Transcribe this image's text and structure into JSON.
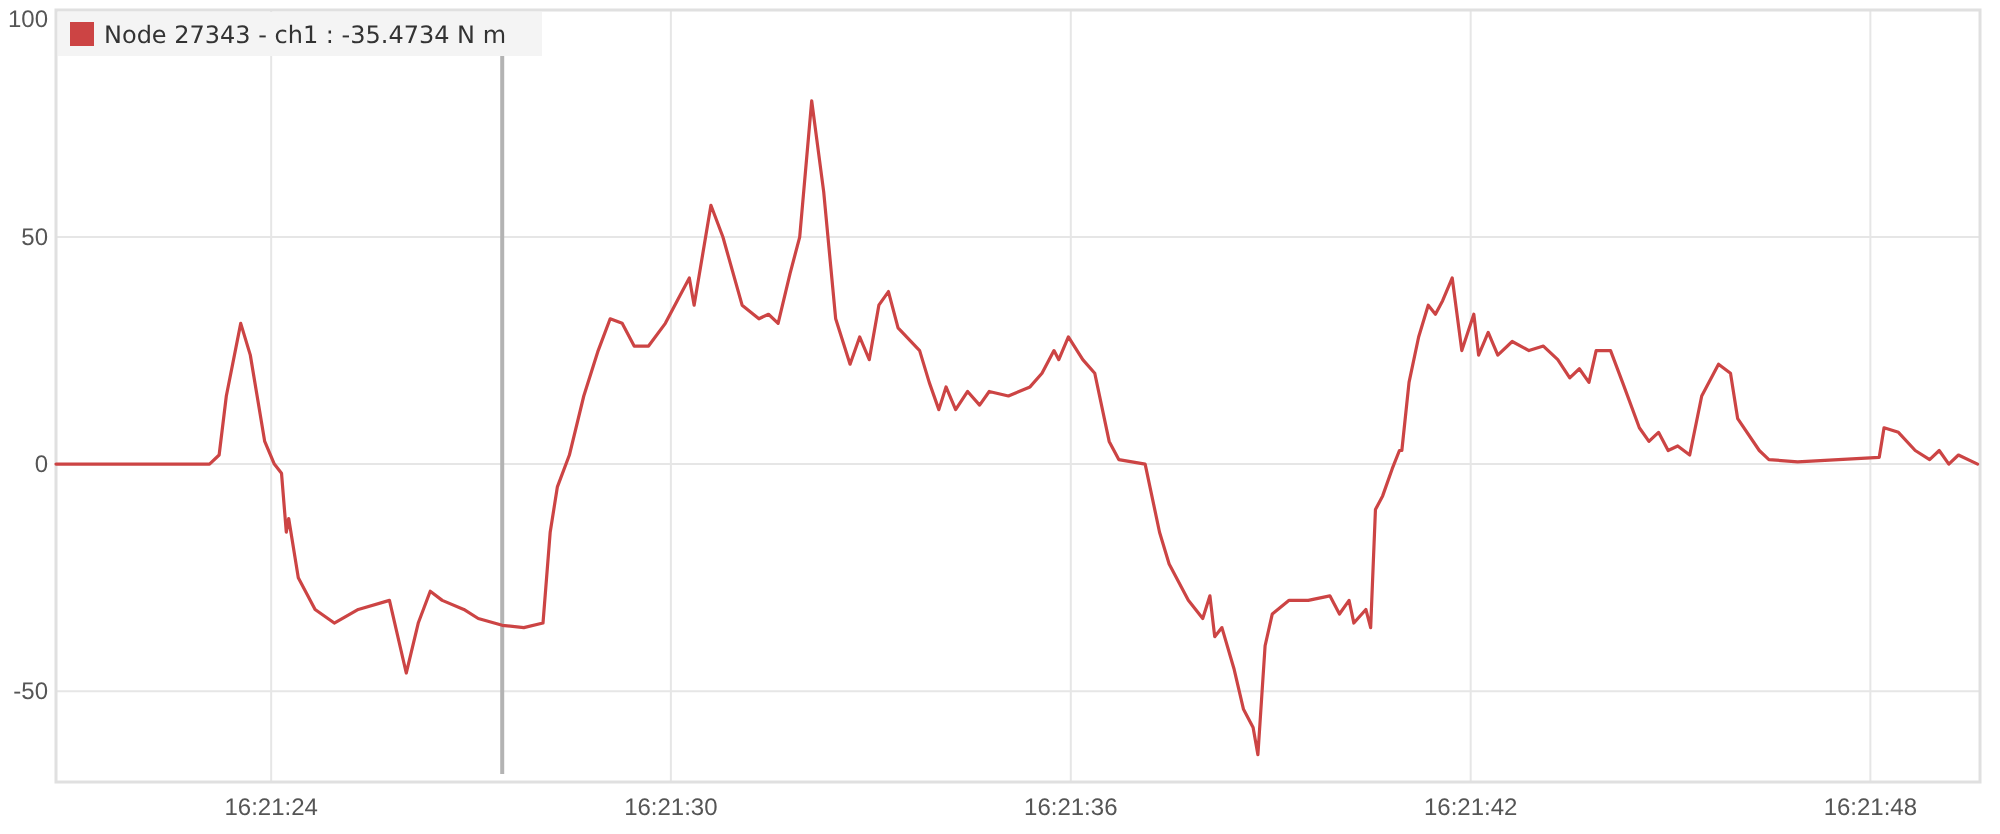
{
  "chart_data": {
    "type": "line",
    "x": [
      16.35577,
      16.35641,
      16.35645,
      16.35648,
      16.35654,
      16.35658,
      16.35664,
      16.35668,
      16.35671,
      16.35673,
      16.35674,
      16.35678,
      16.35685,
      16.35693,
      16.35703,
      16.35716,
      16.35723,
      16.35728,
      16.35733,
      16.35738,
      16.35747,
      16.35753,
      16.35763,
      16.35772,
      16.3578,
      16.35783,
      16.35786,
      16.35791,
      16.35797,
      16.35803,
      16.35808,
      16.35813,
      16.35818,
      16.35824,
      16.35831,
      16.35837,
      16.35841,
      16.35843,
      16.3585,
      16.35855,
      16.35863,
      16.3587,
      16.35874,
      16.35878,
      16.35883,
      16.35887,
      16.35892,
      16.35897,
      16.35902,
      16.35908,
      16.35912,
      16.35916,
      16.3592,
      16.35924,
      16.35928,
      16.35937,
      16.35941,
      16.35945,
      16.35948,
      16.35952,
      16.35957,
      16.35962,
      16.35966,
      16.35974,
      16.35983,
      16.35988,
      16.35993,
      16.35995,
      16.35999,
      16.36005,
      16.3601,
      16.36016,
      16.3602,
      16.36031,
      16.36033,
      16.36037,
      16.36041,
      16.36049,
      16.36055,
      16.36058,
      16.3606,
      16.36063,
      16.36068,
      16.36072,
      16.36076,
      16.36078,
      16.36081,
      16.36084,
      16.36091,
      16.36099,
      16.36108,
      16.36112,
      16.36116,
      16.36118,
      16.36123,
      16.36125,
      16.36127,
      16.3613,
      16.36134,
      16.36137,
      16.36138,
      16.36141,
      16.36145,
      16.36149,
      16.36152,
      16.36155,
      16.36159,
      16.36163,
      16.36168,
      16.3617,
      16.36174,
      16.36178,
      16.36184,
      16.36191,
      16.36197,
      16.36203,
      16.36208,
      16.36212,
      16.36216,
      16.36219,
      16.36225,
      16.3623,
      16.36237,
      16.36241,
      16.36245,
      16.36249,
      16.36253,
      16.36258,
      16.36263,
      16.3627,
      16.36275,
      16.36278,
      16.36287,
      16.36291,
      16.36303,
      16.36337,
      16.36339,
      16.36345,
      16.36352,
      16.36358,
      16.36362,
      16.36366,
      16.3637,
      16.36378
    ],
    "series": [
      {
        "name": "Node 27343 - ch1 : -35.4734 N m",
        "color": "#cc4444",
        "values": [
          0,
          0,
          2,
          15,
          31,
          24,
          5,
          0,
          -2,
          -15,
          -12,
          -25,
          -32,
          -35,
          -32,
          -30,
          -46,
          -35,
          -28,
          -30,
          -32,
          -34,
          -35.5,
          -36,
          -35,
          -15,
          -5,
          2,
          15,
          25,
          32,
          31,
          26,
          26,
          31,
          37,
          41,
          35,
          57,
          50,
          35,
          32,
          33,
          31,
          42,
          50,
          80,
          60,
          32,
          22,
          28,
          23,
          35,
          38,
          30,
          25,
          18,
          12,
          17,
          12,
          16,
          13,
          16,
          15,
          17,
          20,
          25,
          23,
          28,
          23,
          20,
          5,
          1,
          0,
          -5,
          -15,
          -22,
          -30,
          -34,
          -29,
          -38,
          -36,
          -45,
          -54,
          -58,
          -64,
          -40,
          -33,
          -30,
          -30,
          -29,
          -33,
          -30,
          -35,
          -32,
          -36,
          -10,
          -7,
          -1,
          3,
          3,
          18,
          28,
          35,
          33,
          36,
          41,
          25,
          33,
          24,
          29,
          24,
          27,
          25,
          26,
          23,
          19,
          21,
          18,
          25,
          25,
          18,
          8,
          5,
          7,
          3,
          4,
          2,
          15,
          22,
          20,
          10,
          3,
          1,
          0.5,
          1.5,
          8,
          7,
          3,
          1,
          3,
          0,
          2,
          0
        ]
      }
    ],
    "xlim": [
      16.35577,
      16.36379
    ],
    "xticks": [
      {
        "value": 16.356667,
        "label": "16:21:24"
      },
      {
        "value": 16.358333,
        "label": "16:21:30"
      },
      {
        "value": 16.36,
        "label": "16:21:36"
      },
      {
        "value": 16.361667,
        "label": "16:21:42"
      },
      {
        "value": 16.363333,
        "label": "16:21:48"
      }
    ],
    "ylim": [
      -70,
      100
    ],
    "yticks": [
      -50,
      0,
      50,
      100
    ],
    "grid": true,
    "legend": "top left",
    "marker": "none",
    "line_style": "solid",
    "ref_lines": [
      {
        "axis": "x",
        "value": 16.35763,
        "color": "#b3b3b3"
      }
    ]
  }
}
